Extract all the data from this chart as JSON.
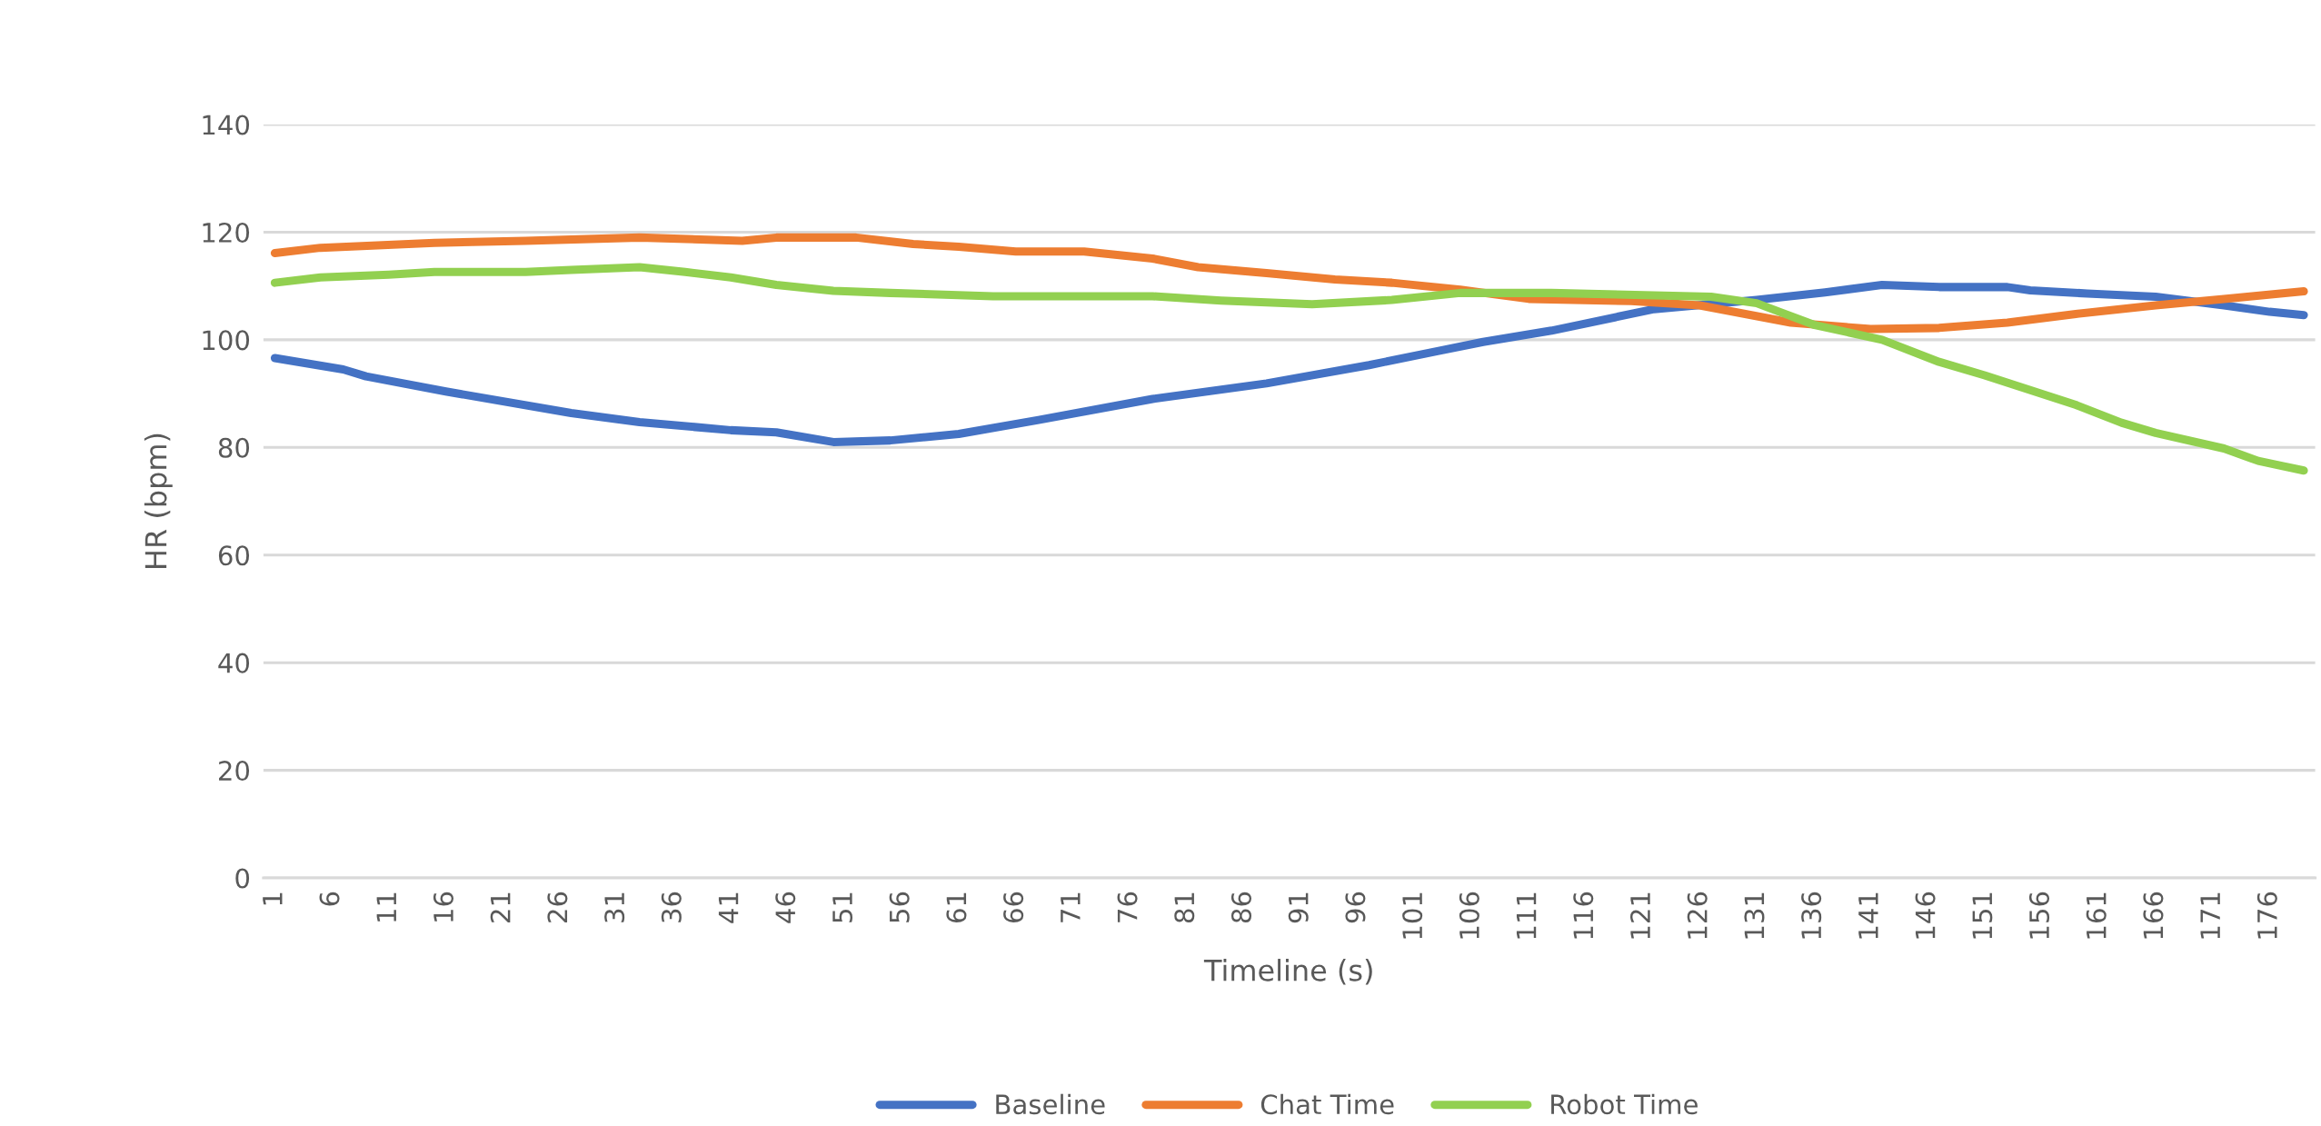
{
  "chart_data": {
    "type": "line",
    "xlabel": "Timeline (s)",
    "ylabel": "HR (bpm)",
    "xlim": [
      0,
      180
    ],
    "xticks": [
      1,
      6,
      11,
      16,
      21,
      26,
      31,
      36,
      41,
      46,
      51,
      56,
      61,
      66,
      71,
      76,
      81,
      86,
      91,
      96,
      101,
      106,
      111,
      116,
      121,
      126,
      131,
      136,
      141,
      146,
      151,
      156,
      161,
      166,
      171,
      176
    ],
    "ylim": [
      0,
      140
    ],
    "yticks": [
      0,
      20,
      40,
      60,
      80,
      100,
      120,
      140
    ],
    "grid": "y",
    "legend": "bottom",
    "marker": "none",
    "line_style": "solid",
    "series": [
      {
        "name": "Baseline",
        "color": "#4472c4",
        "x": [
          1,
          7,
          9,
          16,
          27,
          33,
          41,
          45,
          50,
          55,
          61,
          68,
          78,
          88,
          97,
          103,
          107,
          113,
          122,
          131,
          137,
          142,
          147,
          153,
          155,
          160,
          166,
          172,
          176,
          179
        ],
        "values": [
          96.6,
          94.5,
          93.2,
          90.4,
          86.4,
          84.7,
          83.2,
          82.8,
          81.0,
          81.3,
          82.5,
          85.1,
          89.0,
          91.9,
          95.3,
          97.9,
          99.6,
          101.7,
          105.7,
          107.4,
          108.8,
          110.2,
          109.8,
          109.8,
          109.2,
          108.6,
          108.0,
          106.4,
          105.2,
          104.6
        ]
      },
      {
        "name": "Chat Time",
        "color": "#ed7d31",
        "x": [
          1,
          5,
          15,
          23,
          33,
          42,
          45,
          52,
          57,
          61,
          66,
          72,
          78,
          82,
          88,
          94,
          99,
          105,
          111,
          120,
          126,
          134,
          141,
          147,
          153,
          159,
          166,
          172,
          179
        ],
        "values": [
          116.1,
          117.1,
          118.0,
          118.4,
          119.0,
          118.4,
          119.0,
          119.0,
          117.8,
          117.3,
          116.4,
          116.4,
          115.1,
          113.5,
          112.4,
          111.2,
          110.6,
          109.3,
          107.6,
          107.2,
          106.4,
          103.2,
          102.0,
          102.2,
          103.2,
          104.8,
          106.4,
          107.6,
          109.0
        ]
      },
      {
        "name": "Robot Time",
        "color": "#92d050",
        "x": [
          1,
          5,
          11,
          15,
          23,
          27,
          33,
          37,
          41,
          45,
          50,
          55,
          64,
          78,
          84,
          92,
          99,
          105,
          113,
          127,
          131,
          133,
          136,
          142,
          147,
          151,
          159,
          163,
          166,
          172,
          175,
          179
        ],
        "values": [
          110.6,
          111.6,
          112.1,
          112.6,
          112.6,
          113.0,
          113.5,
          112.6,
          111.6,
          110.2,
          109.1,
          108.7,
          108.1,
          108.1,
          107.3,
          106.6,
          107.4,
          108.7,
          108.7,
          108.0,
          106.8,
          105.2,
          102.8,
          100.0,
          95.9,
          93.4,
          87.9,
          84.6,
          82.7,
          79.8,
          77.5,
          75.7
        ]
      }
    ]
  }
}
